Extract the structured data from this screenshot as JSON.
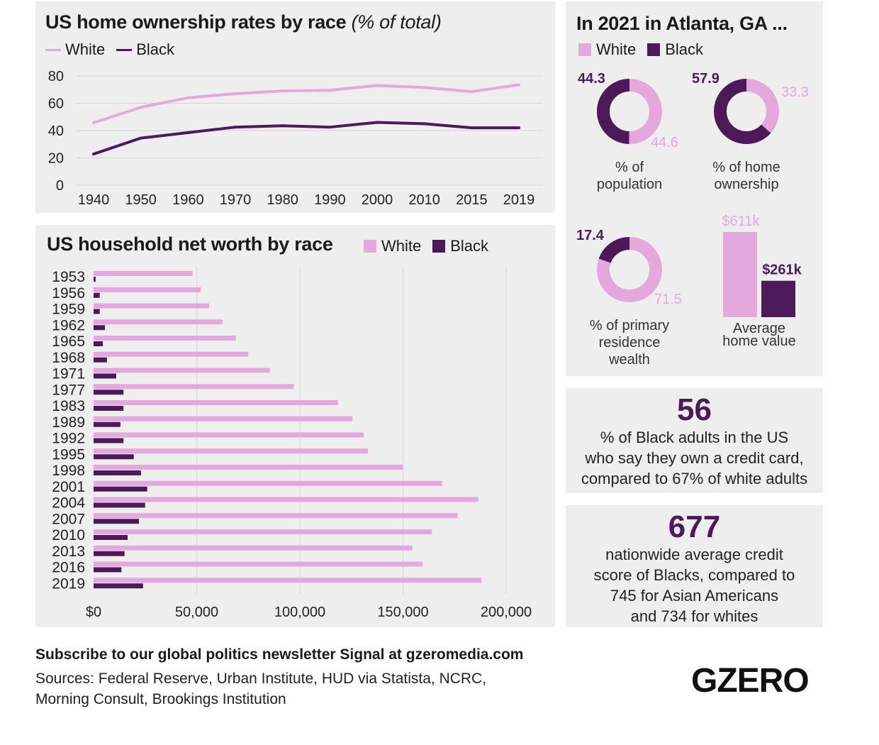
{
  "colors": {
    "white": "#e4a9dc",
    "black": "#4d1a59",
    "panel": "#eeeeee",
    "grid": "#d2d2d2"
  },
  "ownership": {
    "title": "US home ownership rates by race",
    "title_suffix": "(% of total)",
    "legend": {
      "white": "White",
      "black": "Black"
    }
  },
  "networth": {
    "title": "US household net worth by race",
    "legend": {
      "white": "White",
      "black": "Black"
    }
  },
  "atlanta": {
    "title": "In 2021 in Atlanta, GA ...",
    "legend": {
      "white": "White",
      "black": "Black"
    }
  },
  "credit_card": {
    "number": "56",
    "text": [
      "% of Black adults in the US",
      "who say they own a credit card,",
      "compared to 67% of white adults"
    ]
  },
  "credit_score": {
    "number": "677",
    "text": [
      "nationwide average credit",
      "score of Blacks, compared to",
      "745 for Asian Americans",
      "and 734 for whites"
    ]
  },
  "footer": {
    "subscribe": "Subscribe to our global politics newsletter Signal at gzeromedia.com",
    "sources_line1": "Sources: Federal Reserve, Urban Institute, HUD via Statista, NCRC,",
    "sources_line2": "Morning Consult, Brookings Institution",
    "logo": "GZERO"
  },
  "chart_data": [
    {
      "type": "line",
      "title": "US home ownership rates by race (% of total)",
      "x": [
        "1940",
        "1950",
        "1960",
        "1970",
        "1980",
        "1990",
        "2000",
        "2010",
        "2015",
        "2019"
      ],
      "series": [
        {
          "name": "White",
          "values": [
            45.7,
            57,
            64,
            67,
            69,
            69.5,
            73,
            71.5,
            68.5,
            73.5
          ]
        },
        {
          "name": "Black",
          "values": [
            22.8,
            34.5,
            38.5,
            42.5,
            43.5,
            42.5,
            46,
            45,
            42,
            42
          ]
        }
      ],
      "ylim": [
        0,
        80
      ],
      "yticks": [
        0,
        20,
        40,
        60,
        80
      ],
      "grid": true,
      "legend": "top-left"
    },
    {
      "type": "bar",
      "orientation": "horizontal",
      "title": "US household net worth by race",
      "categories": [
        "1953",
        "1956",
        "1959",
        "1962",
        "1965",
        "1968",
        "1971",
        "1977",
        "1983",
        "1989",
        "1992",
        "1995",
        "1998",
        "2001",
        "2004",
        "2007",
        "2010",
        "2013",
        "2016",
        "2019"
      ],
      "series": [
        {
          "name": "White",
          "values": [
            48000,
            52000,
            56000,
            62500,
            69000,
            75000,
            85500,
            97000,
            118500,
            125500,
            131000,
            133000,
            150000,
            169000,
            186500,
            176500,
            164000,
            154500,
            159500,
            188000
          ]
        },
        {
          "name": "Black",
          "values": [
            1000,
            3000,
            3000,
            5500,
            4500,
            6500,
            11000,
            14500,
            14500,
            13000,
            14500,
            19500,
            23000,
            26000,
            25000,
            22000,
            16500,
            15000,
            13500,
            24000
          ]
        }
      ],
      "xlim": [
        0,
        220000
      ],
      "xticks": [
        0,
        50000,
        100000,
        150000,
        200000
      ],
      "xtick_labels": [
        "$0",
        "50,000",
        "100,000",
        "150,000",
        "200,000"
      ],
      "grid": true,
      "legend": "top-right"
    },
    {
      "type": "pie",
      "title": "In 2021 in Atlanta, GA ...",
      "subcharts": [
        {
          "label": "% of population",
          "slices": [
            {
              "name": "White",
              "value": 44.6
            },
            {
              "name": "Black",
              "value": 44.3
            }
          ]
        },
        {
          "label": "% of home ownership",
          "slices": [
            {
              "name": "White",
              "value": 33.3
            },
            {
              "name": "Black",
              "value": 57.9
            }
          ]
        },
        {
          "label": "% of primary residence wealth",
          "slices": [
            {
              "name": "White",
              "value": 71.5
            },
            {
              "name": "Black",
              "value": 17.4
            }
          ]
        }
      ]
    },
    {
      "type": "bar",
      "title": "Average home value",
      "categories": [
        "White",
        "Black"
      ],
      "values": [
        611,
        261
      ],
      "value_labels": [
        "$611k",
        "$261k"
      ],
      "unit": "$k"
    }
  ]
}
